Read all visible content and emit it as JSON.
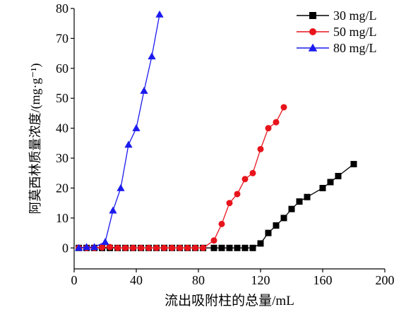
{
  "chart_data": {
    "type": "line",
    "xlabel": "流出吸附柱的总量/mL",
    "ylabel": "阿莫西林质量浓度/(mg·g⁻¹)",
    "xlim": [
      0,
      200
    ],
    "ylim": [
      -7,
      80
    ],
    "xticks": [
      0,
      40,
      80,
      120,
      160,
      200
    ],
    "yticks": [
      0,
      10,
      20,
      30,
      40,
      50,
      60,
      70,
      80
    ],
    "grid": false,
    "legend_position": "top-right",
    "series": [
      {
        "name": "30 mg/L",
        "color": "#000000",
        "marker": "square",
        "x": [
          3,
          8,
          13,
          18,
          23,
          28,
          33,
          38,
          43,
          48,
          53,
          58,
          63,
          68,
          73,
          78,
          83,
          90,
          95,
          100,
          105,
          110,
          115,
          120,
          125,
          130,
          135,
          140,
          145,
          150,
          160,
          165,
          170,
          180
        ],
        "y": [
          0,
          0,
          0,
          0,
          0,
          0,
          0,
          0,
          0,
          0,
          0,
          0,
          0,
          0,
          0,
          0,
          0,
          0,
          0,
          0,
          0,
          0,
          0,
          1.5,
          5,
          7.5,
          10,
          13,
          15.5,
          17,
          20,
          22,
          24,
          28
        ]
      },
      {
        "name": "50 mg/L",
        "color": "#e8141c",
        "marker": "circle",
        "x": [
          3,
          8,
          13,
          18,
          23,
          28,
          33,
          38,
          43,
          48,
          53,
          58,
          63,
          68,
          73,
          78,
          83,
          90,
          95,
          100,
          105,
          110,
          115,
          120,
          125,
          130,
          135
        ],
        "y": [
          0,
          0,
          0,
          0.2,
          0.3,
          0,
          0,
          0,
          0,
          0,
          0,
          0,
          0,
          0,
          0,
          0,
          0,
          2.5,
          8,
          15,
          18,
          23,
          25,
          33,
          40,
          42,
          47
        ]
      },
      {
        "name": "80 mg/L",
        "color": "#1a1aee",
        "marker": "triangle",
        "x": [
          3,
          8,
          13,
          20,
          25,
          30,
          35,
          40,
          45,
          50,
          55
        ],
        "y": [
          0,
          0.3,
          0.3,
          2,
          12.5,
          20,
          34.5,
          40,
          52.5,
          64,
          78
        ]
      }
    ]
  }
}
